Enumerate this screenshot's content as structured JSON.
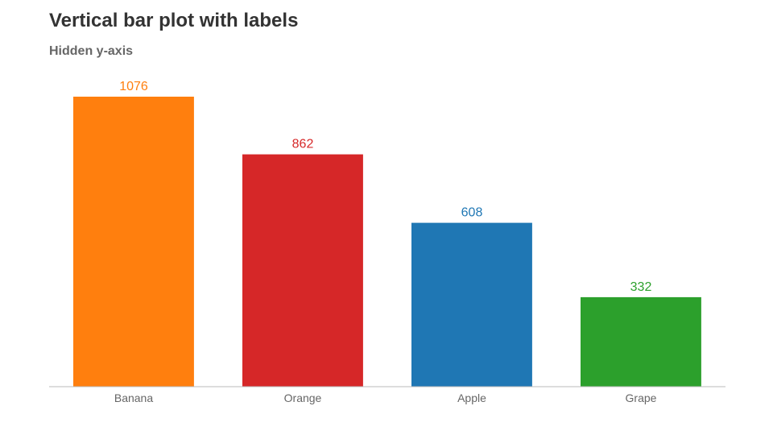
{
  "chart_data": {
    "type": "bar",
    "title": "Vertical bar plot with labels",
    "subtitle": "Hidden y-axis",
    "categories": [
      "Banana",
      "Orange",
      "Apple",
      "Grape"
    ],
    "values": [
      1076,
      862,
      608,
      332
    ],
    "colors": [
      "#ff7f0e",
      "#d62728",
      "#1f77b4",
      "#2ca02c"
    ],
    "ylim": [
      0,
      1076
    ],
    "y_axis_visible": false,
    "grid": false,
    "legend": "none",
    "data_labels": true
  }
}
